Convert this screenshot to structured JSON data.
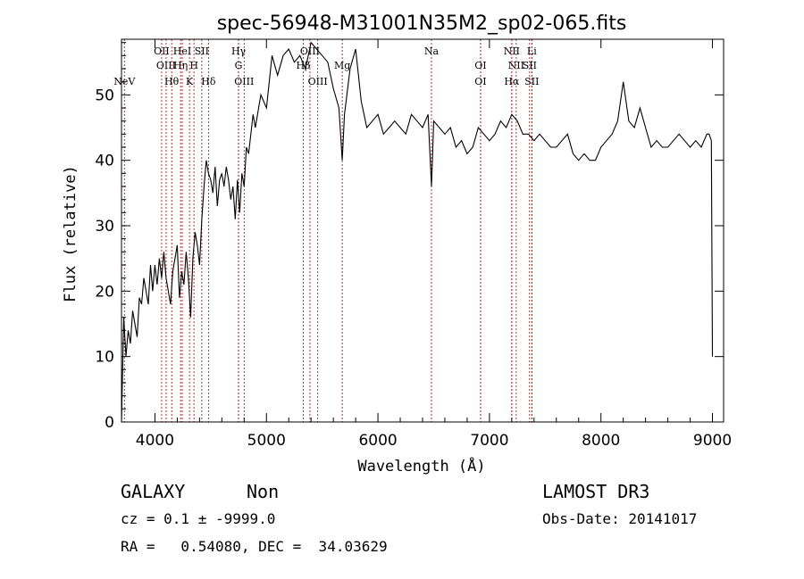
{
  "chart_data": {
    "type": "line",
    "title": "spec-56948-M31001N35M2_sp02-065.fits",
    "xlabel": "Wavelength (Å)",
    "ylabel": "Flux (relative)",
    "xlim": [
      3700,
      9100
    ],
    "ylim": [
      0,
      58.5
    ],
    "xticks": [
      4000,
      5000,
      6000,
      7000,
      8000,
      9000
    ],
    "yticks": [
      0,
      10,
      20,
      30,
      40,
      50
    ],
    "grid": false,
    "series": [
      {
        "color": "#000000",
        "x": [
          3700,
          3720,
          3740,
          3760,
          3780,
          3800,
          3820,
          3840,
          3860,
          3880,
          3900,
          3920,
          3940,
          3960,
          3980,
          4000,
          4020,
          4040,
          4060,
          4080,
          4100,
          4120,
          4140,
          4160,
          4180,
          4200,
          4220,
          4240,
          4260,
          4280,
          4300,
          4320,
          4340,
          4360,
          4380,
          4400,
          4420,
          4440,
          4460,
          4480,
          4500,
          4520,
          4540,
          4560,
          4580,
          4600,
          4620,
          4640,
          4660,
          4680,
          4700,
          4720,
          4740,
          4760,
          4780,
          4800,
          4820,
          4840,
          4860,
          4880,
          4900,
          4950,
          5000,
          5050,
          5100,
          5150,
          5200,
          5250,
          5300,
          5350,
          5400,
          5450,
          5500,
          5550,
          5600,
          5650,
          5680,
          5700,
          5750,
          5800,
          5850,
          5900,
          5950,
          6000,
          6050,
          6100,
          6150,
          6200,
          6250,
          6300,
          6350,
          6400,
          6450,
          6480,
          6500,
          6550,
          6600,
          6650,
          6700,
          6750,
          6800,
          6850,
          6900,
          6950,
          7000,
          7050,
          7100,
          7150,
          7200,
          7250,
          7300,
          7350,
          7400,
          7450,
          7500,
          7550,
          7600,
          7650,
          7700,
          7750,
          7800,
          7850,
          7900,
          7950,
          8000,
          8050,
          8100,
          8150,
          8200,
          8250,
          8300,
          8350,
          8400,
          8450,
          8500,
          8550,
          8600,
          8650,
          8700,
          8750,
          8800,
          8850,
          8900,
          8950,
          8970,
          8990,
          9000
        ],
        "y": [
          0,
          16,
          10,
          14,
          12,
          17,
          15,
          13,
          19,
          18,
          22,
          20,
          18,
          24,
          20,
          24,
          21,
          25,
          22,
          26,
          22,
          20,
          18,
          23,
          25,
          27,
          19,
          23,
          21,
          26,
          22,
          16,
          25,
          29,
          27,
          24,
          31,
          36,
          40,
          38,
          37,
          35,
          39,
          33,
          37,
          38,
          36,
          39,
          37,
          34,
          36,
          31,
          37,
          32,
          38,
          36,
          42,
          41,
          44,
          47,
          45,
          50,
          48,
          56,
          53,
          56,
          57,
          55,
          56,
          54,
          58,
          57,
          56,
          55,
          51,
          48,
          40,
          47,
          54,
          57,
          49,
          45,
          46,
          47,
          44,
          45,
          46,
          45,
          44,
          47,
          46,
          45,
          47,
          36,
          46,
          45,
          44,
          45,
          42,
          43,
          41,
          42,
          45,
          44,
          43,
          44,
          46,
          45,
          47,
          46,
          44,
          44,
          43,
          44,
          43,
          42,
          42,
          43,
          44,
          41,
          40,
          41,
          40,
          40,
          42,
          43,
          44,
          46,
          52,
          46,
          45,
          48,
          45,
          42,
          43,
          42,
          42,
          43,
          44,
          43,
          42,
          43,
          42,
          44,
          44,
          43,
          10
        ]
      }
    ],
    "lines": [
      {
        "name": "NeV",
        "x": 3726,
        "row": 3
      },
      {
        "name": "OII",
        "x": 4060,
        "row": 1
      },
      {
        "name": "OIII",
        "x": 4100,
        "row": 2
      },
      {
        "name": "Hθ",
        "x": 4150,
        "row": 3
      },
      {
        "name": "Hη",
        "x": 4230,
        "row": 2
      },
      {
        "name": "HeI",
        "x": 4245,
        "row": 1
      },
      {
        "name": "K",
        "x": 4310,
        "row": 3
      },
      {
        "name": "H",
        "x": 4350,
        "row": 2
      },
      {
        "name": "SII",
        "x": 4420,
        "row": 1
      },
      {
        "name": "Hδ",
        "x": 4480,
        "row": 3
      },
      {
        "name": "Hγ",
        "x": 4750,
        "row": 1
      },
      {
        "name": "G",
        "x": 4750,
        "row": 2
      },
      {
        "name": "OIII",
        "x": 4800,
        "row": 3
      },
      {
        "name": "Hβ",
        "x": 5330,
        "row": 2
      },
      {
        "name": "OIII",
        "x": 5390,
        "row": 1
      },
      {
        "name": "OIII",
        "x": 5460,
        "row": 3
      },
      {
        "name": "Mg",
        "x": 5680,
        "row": 2
      },
      {
        "name": "Na",
        "x": 6480,
        "row": 1
      },
      {
        "name": "OI",
        "x": 6920,
        "row": 2
      },
      {
        "name": "OI",
        "x": 6920,
        "row": 3
      },
      {
        "name": "NII",
        "x": 7200,
        "row": 1
      },
      {
        "name": "NII",
        "x": 7240,
        "row": 2
      },
      {
        "name": "Hα",
        "x": 7200,
        "row": 3
      },
      {
        "name": "Li",
        "x": 7380,
        "row": 1
      },
      {
        "name": "SII",
        "x": 7360,
        "row": 2
      },
      {
        "name": "SII",
        "x": 7380,
        "row": 3
      }
    ],
    "line_color": "#aa0000"
  },
  "info": {
    "class": "GALAXY",
    "subclass": "Non",
    "survey": "LAMOST DR3",
    "cz_line": "cz = 0.1 ± -9999.0",
    "obs_date": "Obs-Date: 20141017",
    "radec": "RA =   0.54080, DEC =  34.03629"
  }
}
